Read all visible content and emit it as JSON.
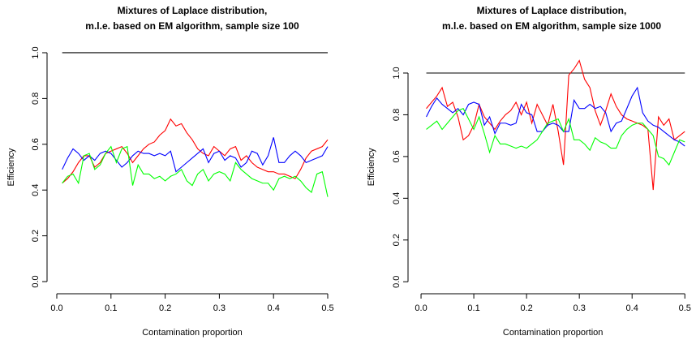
{
  "chart_data": [
    {
      "type": "line",
      "title": [
        "Mixtures of Laplace distribution,",
        "m.l.e. based on EM algorithm, sample size 100"
      ],
      "x_label": "Contamination proportion",
      "y_label": "Efficiency",
      "x": [
        0.01,
        0.02,
        0.03,
        0.04,
        0.05,
        0.06,
        0.07,
        0.08,
        0.09,
        0.1,
        0.11,
        0.12,
        0.13,
        0.14,
        0.15,
        0.16,
        0.17,
        0.18,
        0.19,
        0.2,
        0.21,
        0.22,
        0.23,
        0.24,
        0.25,
        0.26,
        0.27,
        0.28,
        0.29,
        0.3,
        0.31,
        0.32,
        0.33,
        0.34,
        0.35,
        0.36,
        0.37,
        0.38,
        0.39,
        0.4,
        0.41,
        0.42,
        0.43,
        0.44,
        0.45,
        0.46,
        0.47,
        0.48,
        0.49,
        0.5
      ],
      "series": [
        {
          "color": "#000000",
          "values": [
            1,
            1,
            1,
            1,
            1,
            1,
            1,
            1,
            1,
            1,
            1,
            1,
            1,
            1,
            1,
            1,
            1,
            1,
            1,
            1,
            1,
            1,
            1,
            1,
            1,
            1,
            1,
            1,
            1,
            1,
            1,
            1,
            1,
            1,
            1,
            1,
            1,
            1,
            1,
            1,
            1,
            1,
            1,
            1,
            1,
            1,
            1,
            1,
            1,
            1
          ]
        },
        {
          "color": "#ff0000",
          "values": [
            0.43,
            0.45,
            0.48,
            0.52,
            0.55,
            0.55,
            0.5,
            0.52,
            0.56,
            0.57,
            0.58,
            0.59,
            0.56,
            0.52,
            0.55,
            0.58,
            0.6,
            0.61,
            0.64,
            0.66,
            0.71,
            0.68,
            0.69,
            0.65,
            0.62,
            0.58,
            0.56,
            0.55,
            0.59,
            0.57,
            0.55,
            0.58,
            0.59,
            0.53,
            0.55,
            0.52,
            0.5,
            0.49,
            0.48,
            0.48,
            0.47,
            0.47,
            0.46,
            0.45,
            0.49,
            0.54,
            0.57,
            0.58,
            0.59,
            0.62
          ]
        },
        {
          "color": "#0000ff",
          "values": [
            0.49,
            0.54,
            0.58,
            0.56,
            0.53,
            0.55,
            0.53,
            0.56,
            0.57,
            0.56,
            0.53,
            0.5,
            0.52,
            0.55,
            0.57,
            0.56,
            0.56,
            0.55,
            0.56,
            0.55,
            0.57,
            0.48,
            0.5,
            0.52,
            0.54,
            0.56,
            0.58,
            0.52,
            0.56,
            0.57,
            0.53,
            0.55,
            0.54,
            0.5,
            0.52,
            0.57,
            0.56,
            0.51,
            0.55,
            0.63,
            0.52,
            0.52,
            0.55,
            0.57,
            0.55,
            0.52,
            0.53,
            0.54,
            0.55,
            0.59
          ]
        },
        {
          "color": "#00ff00",
          "values": [
            0.43,
            0.46,
            0.47,
            0.43,
            0.55,
            0.56,
            0.49,
            0.51,
            0.56,
            0.59,
            0.52,
            0.58,
            0.59,
            0.42,
            0.51,
            0.47,
            0.47,
            0.45,
            0.46,
            0.44,
            0.46,
            0.47,
            0.49,
            0.44,
            0.42,
            0.47,
            0.49,
            0.44,
            0.47,
            0.48,
            0.47,
            0.44,
            0.52,
            0.49,
            0.47,
            0.45,
            0.44,
            0.43,
            0.43,
            0.4,
            0.45,
            0.46,
            0.45,
            0.46,
            0.44,
            0.41,
            0.39,
            0.47,
            0.48,
            0.37
          ]
        }
      ],
      "xlim": [
        -0.0096,
        0.5196
      ],
      "ylim": [
        -0.04,
        1.04
      ],
      "xticks": [
        {
          "value": 0,
          "label": "0.0"
        },
        0.1,
        0.2,
        0.3,
        0.4,
        0.5
      ],
      "yticks": [
        {
          "value": 0,
          "label": "0.0"
        },
        0.2,
        0.4,
        0.6,
        0.8,
        {
          "value": 1,
          "label": "1.0"
        }
      ]
    },
    {
      "type": "line",
      "title": [
        "Mixtures of Laplace distribution,",
        "m.l.e. based on EM algorithm, sample size 1000"
      ],
      "x_label": "Contamination proportion",
      "y_label": "Efficiency",
      "x": [
        0.01,
        0.02,
        0.03,
        0.04,
        0.05,
        0.06,
        0.07,
        0.08,
        0.09,
        0.1,
        0.11,
        0.12,
        0.13,
        0.14,
        0.15,
        0.16,
        0.17,
        0.18,
        0.19,
        0.2,
        0.21,
        0.22,
        0.23,
        0.24,
        0.25,
        0.26,
        0.27,
        0.28,
        0.29,
        0.3,
        0.31,
        0.32,
        0.33,
        0.34,
        0.35,
        0.36,
        0.37,
        0.38,
        0.39,
        0.4,
        0.41,
        0.42,
        0.43,
        0.44,
        0.45,
        0.46,
        0.47,
        0.48,
        0.49,
        0.5
      ],
      "series": [
        {
          "color": "#000000",
          "values": [
            1,
            1,
            1,
            1,
            1,
            1,
            1,
            1,
            1,
            1,
            1,
            1,
            1,
            1,
            1,
            1,
            1,
            1,
            1,
            1,
            1,
            1,
            1,
            1,
            1,
            1,
            1,
            1,
            1,
            1,
            1,
            1,
            1,
            1,
            1,
            1,
            1,
            1,
            1,
            1,
            1,
            1,
            1,
            1,
            1,
            1,
            1,
            1,
            1,
            1
          ]
        },
        {
          "color": "#ff0000",
          "values": [
            0.83,
            0.86,
            0.89,
            0.93,
            0.84,
            0.86,
            0.79,
            0.68,
            0.7,
            0.75,
            0.85,
            0.79,
            0.76,
            0.73,
            0.77,
            0.8,
            0.82,
            0.86,
            0.8,
            0.86,
            0.76,
            0.85,
            0.8,
            0.75,
            0.85,
            0.72,
            0.56,
            0.99,
            1.02,
            1.06,
            0.97,
            0.93,
            0.82,
            0.75,
            0.82,
            0.9,
            0.84,
            0.8,
            0.78,
            0.77,
            0.76,
            0.75,
            0.73,
            0.44,
            0.79,
            0.75,
            0.78,
            0.68,
            0.7,
            0.72
          ]
        },
        {
          "color": "#0000ff",
          "values": [
            0.79,
            0.84,
            0.88,
            0.85,
            0.83,
            0.81,
            0.83,
            0.8,
            0.85,
            0.86,
            0.85,
            0.75,
            0.79,
            0.71,
            0.76,
            0.76,
            0.75,
            0.76,
            0.85,
            0.81,
            0.8,
            0.72,
            0.72,
            0.75,
            0.76,
            0.75,
            0.72,
            0.72,
            0.87,
            0.83,
            0.83,
            0.85,
            0.83,
            0.84,
            0.81,
            0.72,
            0.76,
            0.77,
            0.83,
            0.89,
            0.93,
            0.81,
            0.77,
            0.75,
            0.74,
            0.72,
            0.7,
            0.68,
            0.67,
            0.65
          ]
        },
        {
          "color": "#00ff00",
          "values": [
            0.73,
            0.75,
            0.77,
            0.73,
            0.76,
            0.79,
            0.82,
            0.83,
            0.78,
            0.73,
            0.79,
            0.71,
            0.62,
            0.7,
            0.66,
            0.66,
            0.65,
            0.64,
            0.65,
            0.64,
            0.66,
            0.68,
            0.72,
            0.76,
            0.77,
            0.78,
            0.72,
            0.78,
            0.68,
            0.68,
            0.66,
            0.63,
            0.69,
            0.67,
            0.66,
            0.64,
            0.64,
            0.7,
            0.73,
            0.75,
            0.76,
            0.76,
            0.73,
            0.7,
            0.6,
            0.59,
            0.56,
            0.62,
            0.68,
            0.67
          ]
        }
      ],
      "xlim": [
        -0.0096,
        0.5196
      ],
      "ylim": [
        -0.04,
        1.14
      ],
      "xticks": [
        {
          "value": 0,
          "label": "0.0"
        },
        0.1,
        0.2,
        0.3,
        0.4,
        0.5
      ],
      "yticks": [
        {
          "value": 0,
          "label": "0.0"
        },
        0.2,
        0.4,
        0.6,
        0.8,
        {
          "value": 1,
          "label": "1.0"
        }
      ]
    }
  ]
}
